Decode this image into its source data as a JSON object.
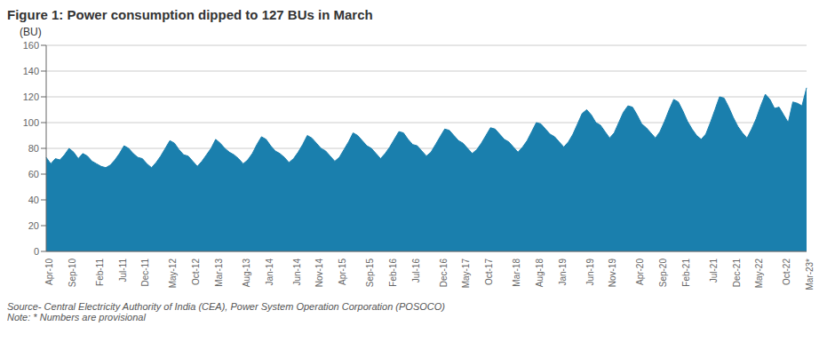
{
  "chart_data": {
    "type": "area",
    "title": "Figure 1: Power consumption dipped to 127 BUs in March",
    "ylabel": "(BU)",
    "color": "#1a7fad",
    "ylim": [
      0,
      160
    ],
    "yticks": [
      0,
      20,
      40,
      60,
      80,
      100,
      120,
      140,
      160
    ],
    "grid": true,
    "annotations": [
      "Source- Central Electricity Authority of India (CEA), Power System Operation Corporation (POSOCO)",
      "Note: * Numbers are provisional"
    ],
    "categories": [
      "Apr-10",
      null,
      null,
      null,
      null,
      "Sep-10",
      null,
      null,
      null,
      null,
      null,
      "Feb-11",
      null,
      null,
      null,
      null,
      "Jul-11",
      null,
      null,
      null,
      null,
      "Dec-11",
      null,
      null,
      null,
      null,
      null,
      "May-12",
      null,
      null,
      null,
      null,
      "Oct-12",
      null,
      null,
      null,
      null,
      "Mar-13",
      null,
      null,
      null,
      null,
      null,
      "Aug-13",
      null,
      null,
      null,
      null,
      "Jan-14",
      null,
      null,
      null,
      null,
      null,
      "Jun-14",
      null,
      null,
      null,
      null,
      "Nov-14",
      null,
      null,
      null,
      null,
      "Apr-15",
      null,
      null,
      null,
      null,
      null,
      "Sep-15",
      null,
      null,
      null,
      null,
      "Feb-16",
      null,
      null,
      null,
      null,
      "Jul-16",
      null,
      null,
      null,
      null,
      null,
      "Dec-16",
      null,
      null,
      null,
      null,
      "May-17",
      null,
      null,
      null,
      null,
      "Oct-17",
      null,
      null,
      null,
      null,
      null,
      "Mar-18",
      null,
      null,
      null,
      null,
      "Aug-18",
      null,
      null,
      null,
      null,
      "Jan-19",
      null,
      null,
      null,
      null,
      null,
      "Jun-19",
      null,
      null,
      null,
      null,
      "Nov-19",
      null,
      null,
      null,
      null,
      null,
      "Apr-20",
      null,
      null,
      null,
      null,
      "Sep-20",
      null,
      null,
      null,
      null,
      "Feb-21",
      null,
      null,
      null,
      null,
      null,
      "Jul-21",
      null,
      null,
      null,
      null,
      "Dec-21",
      null,
      null,
      null,
      null,
      "May-22",
      null,
      null,
      null,
      null,
      null,
      "Oct-22",
      null,
      null,
      null,
      null,
      "Mar-23*"
    ],
    "values": [
      73,
      68,
      72,
      71,
      75,
      80,
      77,
      72,
      76,
      74,
      70,
      68,
      66,
      65,
      67,
      71,
      76,
      82,
      80,
      76,
      73,
      72,
      68,
      65,
      69,
      74,
      80,
      86,
      84,
      79,
      75,
      74,
      70,
      66,
      70,
      75,
      80,
      87,
      84,
      80,
      77,
      75,
      72,
      68,
      71,
      76,
      83,
      89,
      87,
      82,
      78,
      76,
      73,
      69,
      72,
      77,
      83,
      90,
      88,
      84,
      80,
      78,
      74,
      70,
      73,
      79,
      85,
      92,
      90,
      86,
      82,
      80,
      76,
      72,
      76,
      81,
      87,
      93,
      92,
      87,
      83,
      82,
      78,
      74,
      77,
      83,
      89,
      95,
      94,
      90,
      86,
      84,
      80,
      76,
      79,
      84,
      90,
      96,
      95,
      91,
      87,
      85,
      81,
      77,
      81,
      86,
      93,
      100,
      99,
      95,
      91,
      89,
      85,
      81,
      85,
      91,
      99,
      107,
      110,
      106,
      100,
      98,
      93,
      88,
      92,
      100,
      108,
      113,
      112,
      106,
      99,
      96,
      92,
      88,
      93,
      101,
      110,
      118,
      116,
      109,
      101,
      95,
      90,
      87,
      91,
      100,
      110,
      120,
      119,
      112,
      104,
      97,
      92,
      88,
      95,
      103,
      113,
      122,
      118,
      111,
      112,
      106,
      100,
      116,
      115,
      113,
      127
    ]
  }
}
